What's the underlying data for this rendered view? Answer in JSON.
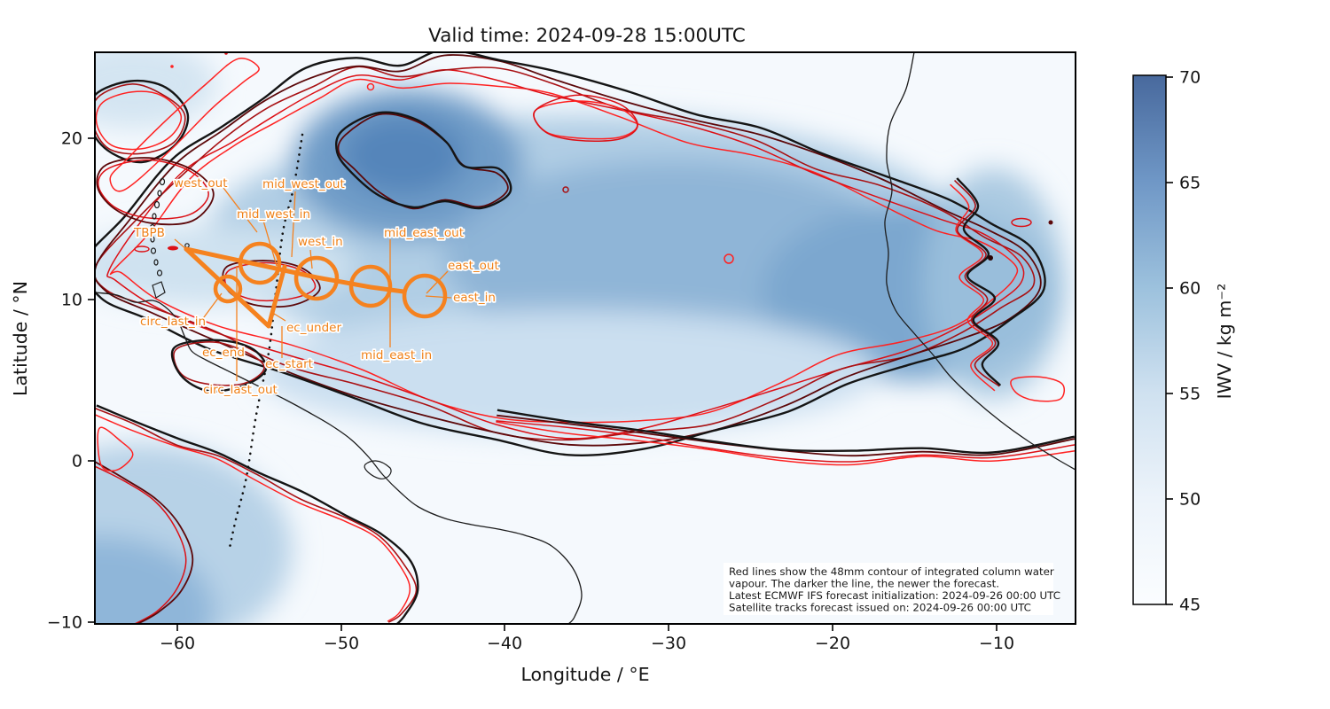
{
  "title": "Valid time: 2024-09-28 15:00UTC",
  "axes": {
    "x_label": "Longitude / °E",
    "y_label": "Latitude / °N",
    "x_ticks": [
      "−60",
      "−50",
      "−40",
      "−30",
      "−20",
      "−10"
    ],
    "y_ticks": [
      "20",
      "10",
      "0",
      "−10"
    ]
  },
  "colorbar": {
    "label": "IWV / kg m⁻²",
    "ticks": [
      "70",
      "65",
      "60",
      "55",
      "50",
      "45"
    ]
  },
  "track_labels": [
    "west_out",
    "mid_west_out",
    "mid_west_in",
    "TBPB",
    "west_in",
    "mid_east_out",
    "east_out",
    "east_in",
    "circ_last_in",
    "ec_under",
    "ec_end",
    "ec_start",
    "mid_east_in",
    "circ_last_out"
  ],
  "annotation": {
    "lines": [
      "Red lines show the 48mm contour of integrated column water",
      "vapour. The darker the line, the newer the forecast.",
      "Latest ECMWF IFS forecast initialization: 2024-09-26 00:00 UTC",
      "Satellite tracks forecast issued on: 2024-09-26 00:00 UTC"
    ]
  },
  "chart_data": {
    "type": "heatmap",
    "title": "Valid time: 2024-09-28 15:00UTC",
    "xlabel": "Longitude / °E",
    "ylabel": "Latitude / °N",
    "xlim": [
      -65,
      -5
    ],
    "ylim": [
      -10,
      25.3
    ],
    "x_ticks": [
      -60,
      -50,
      -40,
      -30,
      -20,
      -10
    ],
    "y_ticks": [
      -10,
      0,
      10,
      20
    ],
    "grid": false,
    "field": "integrated water vapour (IWV) forecast over the tropical Atlantic",
    "colorbar": {
      "label": "IWV / kg m⁻²",
      "min": 45,
      "max": 70,
      "ticks": [
        45,
        50,
        55,
        60,
        65,
        70
      ],
      "colormap": "Blues"
    },
    "iwv_features": [
      {
        "description": "moist plume core",
        "lon": -46,
        "lat": 18,
        "iwv_approx": 63
      },
      {
        "description": "eastern Atlantic moist band",
        "lon": -13,
        "lat": 10,
        "iwv_approx": 60
      },
      {
        "description": "south-west moist area near Brazil coast",
        "lon": -61,
        "lat": -7,
        "iwv_approx": 55
      }
    ],
    "contours": {
      "value_mm": 48,
      "variable": "integrated column water vapour",
      "encoding": "darker line = newer ECMWF IFS forecast run",
      "line_colors": [
        "#ff2222",
        "#dc1016",
        "#a81114",
        "#5c080a",
        "#151515"
      ]
    },
    "flight_track": {
      "color": "#f5821f",
      "origin_airport": "TBPB",
      "waypoints": [
        {
          "name": "TBPB",
          "lon": -59.3,
          "lat": 13.1,
          "type": "origin"
        },
        {
          "name": "circ_last",
          "lon": -56.9,
          "lat": 10.8,
          "type": "circle"
        },
        {
          "name": "west",
          "lon": -54.9,
          "lat": 12.3,
          "type": "circle"
        },
        {
          "name": "mid_west",
          "lon": -51.4,
          "lat": 11.4,
          "type": "circle"
        },
        {
          "name": "mid_east",
          "lon": -48.1,
          "lat": 10.9,
          "type": "circle"
        },
        {
          "name": "east",
          "lon": -44.8,
          "lat": 10.3,
          "type": "circle"
        },
        {
          "name": "ec_track_vertex",
          "lon": -54.2,
          "lat": 8.4,
          "type": "waypoint"
        }
      ],
      "label_names": [
        "west_out",
        "mid_west_out",
        "mid_west_in",
        "TBPB",
        "west_in",
        "mid_east_out",
        "east_out",
        "east_in",
        "circ_last_in",
        "ec_under",
        "ec_end",
        "ec_start",
        "mid_east_in",
        "circ_last_out"
      ]
    },
    "satellite_track": {
      "style": "dotted black",
      "from": {
        "lon": -52.3,
        "lat": 25.0
      },
      "to": {
        "lon": -56.7,
        "lat": -5.3
      }
    }
  }
}
